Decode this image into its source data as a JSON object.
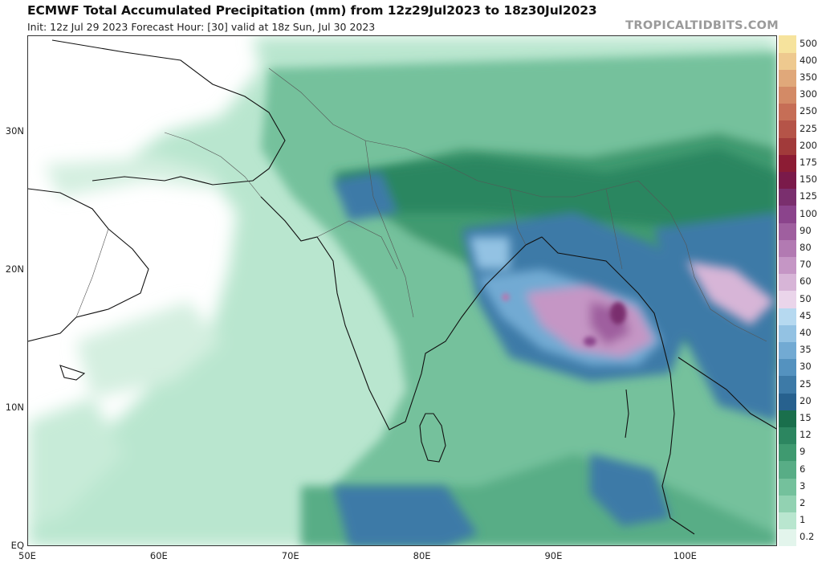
{
  "header": {
    "title": "ECMWF Total Accumulated Precipitation (mm) from 12z29Jul2023 to 18z30Jul2023",
    "subtitle": "Init: 12z Jul 29 2023   Forecast Hour: [30]   valid at 18z Sun, Jul 30 2023",
    "brand": "TROPICALTIDBITS.COM"
  },
  "axes": {
    "lat_labels": [
      {
        "label": "30N",
        "lat": 30
      },
      {
        "label": "20N",
        "lat": 20
      },
      {
        "label": "10N",
        "lat": 10
      },
      {
        "label": "EQ",
        "lat": 0
      }
    ],
    "lon_labels": [
      {
        "label": "50E",
        "lon": 50
      },
      {
        "label": "60E",
        "lon": 60
      },
      {
        "label": "70E",
        "lon": 70
      },
      {
        "label": "80E",
        "lon": 80
      },
      {
        "label": "90E",
        "lon": 90
      },
      {
        "label": "100E",
        "lon": 100
      }
    ],
    "lon_range": [
      50,
      107
    ],
    "lat_range": [
      0,
      37
    ]
  },
  "colorbar": {
    "levels": [
      {
        "label": "0.2",
        "color": "#e3f5ec"
      },
      {
        "label": "1",
        "color": "#b9e6cf"
      },
      {
        "label": "2",
        "color": "#92d2b2"
      },
      {
        "label": "3",
        "color": "#74c19c"
      },
      {
        "label": "6",
        "color": "#58ad86"
      },
      {
        "label": "9",
        "color": "#3f9a70"
      },
      {
        "label": "12",
        "color": "#2c8660"
      },
      {
        "label": "15",
        "color": "#1a6f4c"
      },
      {
        "label": "20",
        "color": "#27618e"
      },
      {
        "label": "25",
        "color": "#3d7aa7"
      },
      {
        "label": "30",
        "color": "#5492bf"
      },
      {
        "label": "35",
        "color": "#72aad3"
      },
      {
        "label": "40",
        "color": "#93c2e3"
      },
      {
        "label": "45",
        "color": "#b6d9f0"
      },
      {
        "label": "50",
        "color": "#ead5ea"
      },
      {
        "label": "60",
        "color": "#d7b5d7"
      },
      {
        "label": "70",
        "color": "#c596c5"
      },
      {
        "label": "80",
        "color": "#b27ab2"
      },
      {
        "label": "90",
        "color": "#9f5f9f"
      },
      {
        "label": "100",
        "color": "#8b448c"
      },
      {
        "label": "125",
        "color": "#7a2f6e"
      },
      {
        "label": "150",
        "color": "#7a1a4a"
      },
      {
        "label": "175",
        "color": "#8c1c34"
      },
      {
        "label": "200",
        "color": "#a13a3a"
      },
      {
        "label": "225",
        "color": "#b55448"
      },
      {
        "label": "250",
        "color": "#c66e56"
      },
      {
        "label": "300",
        "color": "#d38a66"
      },
      {
        "label": "350",
        "color": "#e0a87a"
      },
      {
        "label": "400",
        "color": "#eec98f"
      },
      {
        "label": "500",
        "color": "#f6e39d"
      }
    ]
  }
}
